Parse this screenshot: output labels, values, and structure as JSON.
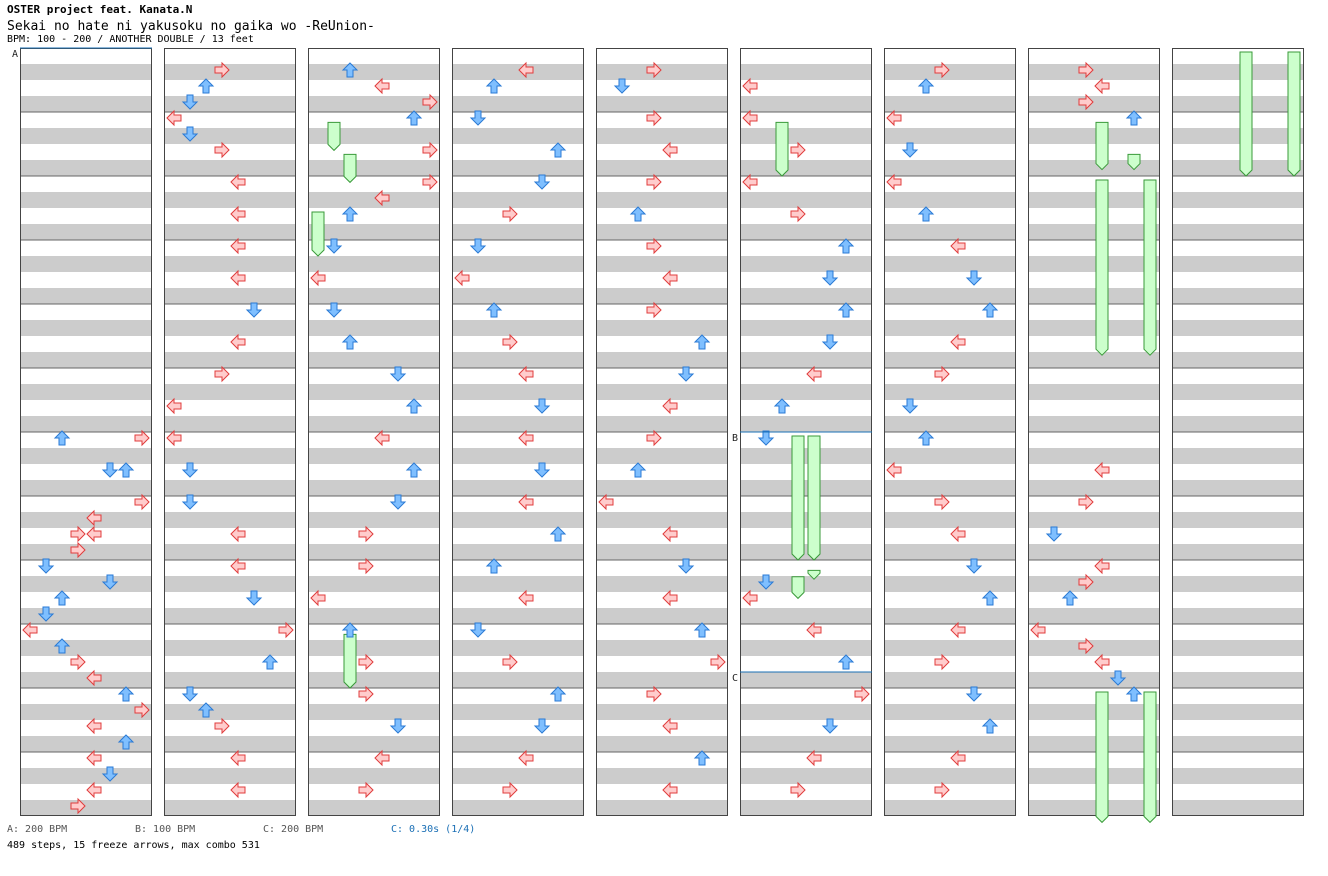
{
  "header": {
    "artist": "OSTER project feat. Kanata.N",
    "title": "Sekai no hate ni yakusoku no gaika wo -ReUnion-",
    "info": "BPM: 100 - 200 / ANOTHER DOUBLE / 13 feet"
  },
  "legend": [
    {
      "label": "A: 200 BPM",
      "color": "#555555"
    },
    {
      "label": "B: 100 BPM",
      "color": "#555555"
    },
    {
      "label": "C: 200 BPM",
      "color": "#555555"
    },
    {
      "label": "C: 0.30s (1/4)",
      "color": "#1a6fb5"
    }
  ],
  "stats": "489 steps, 15 freeze arrows, max combo 531",
  "markers": [
    {
      "label": "A",
      "column": 0,
      "measure": 0
    },
    {
      "label": "B",
      "column": 5,
      "measure": 6
    },
    {
      "label": "C",
      "column": 5,
      "measure": 9.75
    }
  ],
  "colors": {
    "red_fill": "#ffcccc",
    "red_stroke": "#e03c3c",
    "blue_fill": "#7fbfff",
    "blue_stroke": "#2a7ad4",
    "pink_fill": "#ffc8f0",
    "pink_stroke": "#d060c0",
    "freeze_fill": "#ccffcc",
    "freeze_stroke": "#3a9a3a",
    "stripe": "#cccccc",
    "marker_line": "#1a6fb5"
  },
  "chart_data": {
    "type": "table",
    "title": "Sekai no hate ni yakusoku no gaika wo -ReUnion- (ANOTHER DOUBLE)",
    "columns": 9,
    "measures_per_column": 12,
    "lanes": [
      "L1",
      "D1",
      "U1",
      "R1",
      "L2",
      "D2",
      "U2",
      "R2"
    ],
    "notes": [
      [
        0,
        6,
        0,
        2
      ],
      [
        0,
        6,
        0,
        7
      ],
      [
        0,
        6.5,
        0,
        5
      ],
      [
        0,
        6.5,
        0,
        6
      ],
      [
        0,
        7,
        0,
        7
      ],
      [
        0,
        7.25,
        0,
        4
      ],
      [
        0,
        7.5,
        0,
        3
      ],
      [
        0,
        7.5,
        0,
        4
      ],
      [
        0,
        7.75,
        0,
        3
      ],
      [
        0,
        8,
        0,
        1
      ],
      [
        0,
        8.25,
        0,
        5
      ],
      [
        0,
        8.5,
        0,
        2
      ],
      [
        0,
        8.75,
        0,
        1
      ],
      [
        0,
        9,
        0,
        0
      ],
      [
        0,
        9.25,
        0,
        2
      ],
      [
        0,
        9.5,
        0,
        3
      ],
      [
        0,
        9.75,
        0,
        4
      ],
      [
        0,
        10,
        0,
        6
      ],
      [
        0,
        10.25,
        0,
        7
      ],
      [
        0,
        10.5,
        0,
        4
      ],
      [
        0,
        10.75,
        0,
        6
      ],
      [
        0,
        11,
        0,
        4
      ],
      [
        0,
        11.25,
        0,
        5
      ],
      [
        0,
        11.5,
        0,
        4
      ],
      [
        0,
        11.75,
        0,
        3
      ],
      [
        1,
        0.25,
        0,
        3
      ],
      [
        1,
        0.5,
        0,
        2
      ],
      [
        1,
        0.75,
        0,
        1
      ],
      [
        1,
        1,
        0,
        0
      ],
      [
        1,
        1.25,
        0,
        1
      ],
      [
        1,
        1.5,
        0,
        3
      ],
      [
        1,
        2,
        0,
        4
      ],
      [
        1,
        2.5,
        0,
        4
      ],
      [
        1,
        3,
        0,
        4
      ],
      [
        1,
        3.5,
        0,
        4
      ],
      [
        1,
        4,
        0,
        5
      ],
      [
        1,
        4.5,
        0,
        4
      ],
      [
        1,
        5,
        0,
        3
      ],
      [
        1,
        5.5,
        0,
        0
      ],
      [
        1,
        6,
        0,
        0
      ],
      [
        1,
        6.5,
        0,
        1
      ],
      [
        1,
        7,
        0,
        1
      ],
      [
        1,
        7.5,
        0,
        4
      ],
      [
        1,
        8,
        0,
        4
      ],
      [
        1,
        8.5,
        0,
        5
      ],
      [
        1,
        9,
        0,
        7
      ],
      [
        1,
        9.5,
        0,
        6
      ],
      [
        1,
        10,
        0,
        1
      ],
      [
        1,
        10.25,
        0,
        2
      ],
      [
        1,
        10.5,
        0,
        3
      ],
      [
        1,
        11,
        0,
        4
      ],
      [
        1,
        11.5,
        0,
        4
      ],
      [
        2,
        0.25,
        0,
        2
      ],
      [
        2,
        0.5,
        0,
        4
      ],
      [
        2,
        0.75,
        0,
        7
      ],
      [
        2,
        1,
        0,
        6
      ],
      [
        2,
        1.5,
        0,
        7
      ],
      [
        2,
        2,
        0,
        7
      ],
      [
        2,
        2.25,
        0,
        4
      ],
      [
        2,
        2.5,
        0,
        2
      ],
      [
        2,
        3,
        0,
        1
      ],
      [
        2,
        3.5,
        0,
        0
      ],
      [
        2,
        4,
        0,
        1
      ],
      [
        2,
        4.5,
        0,
        2
      ],
      [
        2,
        5,
        0,
        5
      ],
      [
        2,
        5.5,
        0,
        6
      ],
      [
        2,
        6,
        0,
        4
      ],
      [
        2,
        6.5,
        0,
        6
      ],
      [
        2,
        7,
        0,
        5
      ],
      [
        2,
        7.5,
        0,
        3
      ],
      [
        2,
        8,
        0,
        3
      ],
      [
        2,
        8.5,
        0,
        0
      ],
      [
        2,
        9,
        0,
        2
      ],
      [
        2,
        9.5,
        0,
        3
      ],
      [
        2,
        10,
        0,
        3
      ],
      [
        2,
        10.5,
        0,
        5
      ],
      [
        2,
        11,
        0,
        4
      ],
      [
        2,
        11.5,
        0,
        3
      ],
      [
        3,
        0.25,
        0,
        4
      ],
      [
        3,
        0.5,
        0,
        2
      ],
      [
        3,
        1,
        0,
        1
      ],
      [
        3,
        1.5,
        0,
        6
      ],
      [
        3,
        2,
        0,
        5
      ],
      [
        3,
        2.5,
        0,
        3
      ],
      [
        3,
        3,
        0,
        1
      ],
      [
        3,
        3.5,
        0,
        0
      ],
      [
        3,
        4,
        0,
        2
      ],
      [
        3,
        4.5,
        0,
        3
      ],
      [
        3,
        5,
        0,
        4
      ],
      [
        3,
        5.5,
        0,
        5
      ],
      [
        3,
        6,
        0,
        4
      ],
      [
        3,
        6.5,
        0,
        5
      ],
      [
        3,
        7,
        0,
        4
      ],
      [
        3,
        7.5,
        0,
        6
      ],
      [
        3,
        8,
        0,
        2
      ],
      [
        3,
        8.5,
        0,
        4
      ],
      [
        3,
        9,
        0,
        1
      ],
      [
        3,
        9.5,
        0,
        3
      ],
      [
        3,
        10,
        0,
        6
      ],
      [
        3,
        10.5,
        0,
        5
      ],
      [
        3,
        11,
        0,
        4
      ],
      [
        3,
        11.5,
        0,
        3
      ],
      [
        4,
        0.25,
        0,
        3
      ],
      [
        4,
        0.5,
        0,
        1
      ],
      [
        4,
        1,
        0,
        3
      ],
      [
        4,
        1.5,
        0,
        4
      ],
      [
        4,
        2,
        0,
        3
      ],
      [
        4,
        2.5,
        0,
        2
      ],
      [
        4,
        3,
        0,
        3
      ],
      [
        4,
        3.5,
        0,
        4
      ],
      [
        4,
        4,
        0,
        3
      ],
      [
        4,
        4.5,
        0,
        6
      ],
      [
        4,
        5,
        0,
        5
      ],
      [
        4,
        5.5,
        0,
        4
      ],
      [
        4,
        6,
        0,
        3
      ],
      [
        4,
        6.5,
        0,
        2
      ],
      [
        4,
        7,
        0,
        0
      ],
      [
        4,
        7.5,
        0,
        4
      ],
      [
        4,
        8,
        0,
        5
      ],
      [
        4,
        8.5,
        0,
        4
      ],
      [
        4,
        9,
        0,
        6
      ],
      [
        4,
        9.5,
        0,
        7
      ],
      [
        4,
        10,
        0,
        3
      ],
      [
        4,
        10.5,
        0,
        4
      ],
      [
        4,
        11,
        0,
        6
      ],
      [
        4,
        11.5,
        0,
        4
      ],
      [
        5,
        0.5,
        0,
        0
      ],
      [
        5,
        1,
        0,
        0
      ],
      [
        5,
        1.5,
        0,
        3
      ],
      [
        5,
        2,
        0,
        0
      ],
      [
        5,
        2.5,
        0,
        3
      ],
      [
        5,
        3,
        0,
        6
      ],
      [
        5,
        3.5,
        0,
        5
      ],
      [
        5,
        4,
        0,
        6
      ],
      [
        5,
        4.5,
        0,
        5
      ],
      [
        5,
        5,
        0,
        4
      ],
      [
        5,
        5.5,
        0,
        2
      ],
      [
        5,
        6,
        0,
        1
      ],
      [
        5,
        8.25,
        0,
        1
      ],
      [
        5,
        8.5,
        0,
        0
      ],
      [
        5,
        9,
        0,
        4
      ],
      [
        5,
        9.5,
        0,
        6
      ],
      [
        5,
        10,
        0,
        7
      ],
      [
        5,
        10.5,
        0,
        5
      ],
      [
        5,
        11,
        0,
        4
      ],
      [
        5,
        11.5,
        0,
        3
      ],
      [
        6,
        0.25,
        0,
        3
      ],
      [
        6,
        0.5,
        0,
        2
      ],
      [
        6,
        1,
        0,
        0
      ],
      [
        6,
        1.5,
        0,
        1
      ],
      [
        6,
        2,
        0,
        0
      ],
      [
        6,
        2.5,
        0,
        2
      ],
      [
        6,
        3,
        0,
        4
      ],
      [
        6,
        3.5,
        0,
        5
      ],
      [
        6,
        4,
        0,
        6
      ],
      [
        6,
        4.5,
        0,
        4
      ],
      [
        6,
        5,
        0,
        3
      ],
      [
        6,
        5.5,
        0,
        1
      ],
      [
        6,
        6,
        0,
        2
      ],
      [
        6,
        6.5,
        0,
        0
      ],
      [
        6,
        7,
        0,
        3
      ],
      [
        6,
        7.5,
        0,
        4
      ],
      [
        6,
        8,
        0,
        5
      ],
      [
        6,
        8.5,
        0,
        6
      ],
      [
        6,
        9,
        0,
        4
      ],
      [
        6,
        9.5,
        0,
        3
      ],
      [
        6,
        10,
        0,
        5
      ],
      [
        6,
        10.5,
        0,
        6
      ],
      [
        6,
        11,
        0,
        4
      ],
      [
        6,
        11.5,
        0,
        3
      ],
      [
        7,
        0.25,
        0,
        3
      ],
      [
        7,
        0.5,
        0,
        4
      ],
      [
        7,
        0.75,
        0,
        3
      ],
      [
        7,
        1,
        0,
        6
      ],
      [
        7,
        6.5,
        0,
        4
      ],
      [
        7,
        7,
        0,
        3
      ],
      [
        7,
        7.5,
        0,
        1
      ],
      [
        7,
        8,
        0,
        4
      ],
      [
        7,
        8.25,
        0,
        3
      ],
      [
        7,
        8.5,
        0,
        2
      ],
      [
        7,
        9,
        0,
        0
      ],
      [
        7,
        9.25,
        0,
        3
      ],
      [
        7,
        9.5,
        0,
        4
      ],
      [
        7,
        9.75,
        0,
        5
      ],
      [
        7,
        10,
        0,
        6
      ]
    ],
    "freezes": [
      [
        2,
        1.1,
        1.6,
        1
      ],
      [
        2,
        1.6,
        2.1,
        2
      ],
      [
        2,
        2.5,
        3.25,
        0
      ],
      [
        2,
        9.1,
        10,
        2
      ],
      [
        5,
        1.1,
        2,
        2
      ],
      [
        5,
        6,
        8,
        3
      ],
      [
        5,
        6,
        8,
        4
      ],
      [
        5,
        8.2,
        8.6,
        3
      ],
      [
        5,
        8.1,
        8.3,
        4
      ],
      [
        7,
        1.1,
        1.9,
        4
      ],
      [
        7,
        1.6,
        1.9,
        6
      ],
      [
        7,
        2,
        4.8,
        4
      ],
      [
        7,
        2,
        4.8,
        7
      ],
      [
        7,
        10,
        12.1,
        4
      ],
      [
        7,
        10,
        12.1,
        7
      ],
      [
        8,
        0,
        2,
        4
      ],
      [
        8,
        0,
        2,
        7
      ]
    ]
  }
}
